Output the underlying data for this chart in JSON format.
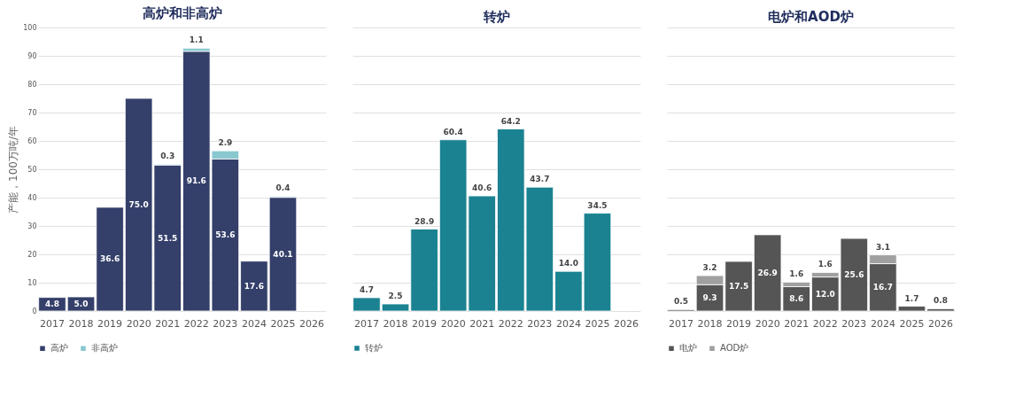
{
  "chart_data": [
    {
      "type": "bar",
      "title": "高炉和非高炉",
      "ylabel": "产能，100万吨/年",
      "categories": [
        "2017",
        "2018",
        "2019",
        "2020",
        "2021",
        "2022",
        "2023",
        "2024",
        "2025",
        "2026"
      ],
      "stacked": true,
      "ylim": [
        0,
        100
      ],
      "yticks": [
        0,
        10,
        20,
        30,
        40,
        50,
        60,
        70,
        80,
        90,
        100
      ],
      "grid": "y",
      "legend": "bottom",
      "series": [
        {
          "name": "高炉",
          "color": "#343f6a",
          "values": [
            4.8,
            5.0,
            36.6,
            75.0,
            51.5,
            91.6,
            53.6,
            17.6,
            40.1,
            null
          ],
          "value_labels": [
            "4.8",
            "5.0",
            "36.6",
            "75.0",
            "51.5",
            "91.6",
            "53.6",
            "17.6",
            "40.1",
            null
          ]
        },
        {
          "name": "非高炉",
          "color": "#8ac8d0",
          "values": [
            null,
            null,
            null,
            null,
            0.3,
            1.1,
            2.9,
            null,
            0.4,
            null
          ],
          "value_labels": [
            null,
            null,
            null,
            null,
            "0.3",
            "1.1",
            "2.9",
            null,
            "0.4",
            null
          ]
        }
      ]
    },
    {
      "type": "bar",
      "title": "转炉",
      "categories": [
        "2017",
        "2018",
        "2019",
        "2020",
        "2021",
        "2022",
        "2023",
        "2024",
        "2025",
        "2026"
      ],
      "ylim": [
        0,
        100
      ],
      "yticks": [
        0,
        10,
        20,
        30,
        40,
        50,
        60,
        70,
        80,
        90,
        100
      ],
      "grid": "y",
      "legend": "bottom",
      "tick_labels": "x",
      "series": [
        {
          "name": "转炉",
          "color": "#1a8291",
          "values": [
            4.7,
            2.5,
            28.9,
            60.4,
            40.6,
            64.2,
            43.7,
            14.0,
            34.5,
            null
          ],
          "value_labels": [
            "4.7",
            "2.5",
            "28.9",
            "60.4",
            "40.6",
            "64.2",
            "43.7",
            "14.0",
            "34.5",
            null
          ]
        }
      ]
    },
    {
      "type": "bar",
      "title": "电炉和AOD炉",
      "categories": [
        "2017",
        "2018",
        "2019",
        "2020",
        "2021",
        "2022",
        "2023",
        "2024",
        "2025",
        "2026"
      ],
      "stacked": true,
      "ylim": [
        0,
        100
      ],
      "yticks": [
        0,
        10,
        20,
        30,
        40,
        50,
        60,
        70,
        80,
        90,
        100
      ],
      "grid": "y",
      "legend": "bottom",
      "tick_labels": "x",
      "series": [
        {
          "name": "电炉",
          "color": "#555555",
          "values": [
            0.5,
            9.3,
            17.5,
            26.9,
            8.6,
            12.0,
            25.6,
            16.7,
            1.7,
            0.8
          ],
          "value_labels": [
            "0.5",
            "9.3",
            "17.5",
            "26.9",
            "8.6",
            "12.0",
            "25.6",
            "16.7",
            "1.7",
            "0.8"
          ]
        },
        {
          "name": "AOD炉",
          "color": "#a0a0a0",
          "values": [
            null,
            3.2,
            null,
            null,
            1.6,
            1.6,
            null,
            3.1,
            null,
            null
          ],
          "value_labels": [
            null,
            "3.2",
            null,
            null,
            "1.6",
            "1.6",
            null,
            "3.1",
            null,
            null
          ]
        }
      ]
    }
  ]
}
